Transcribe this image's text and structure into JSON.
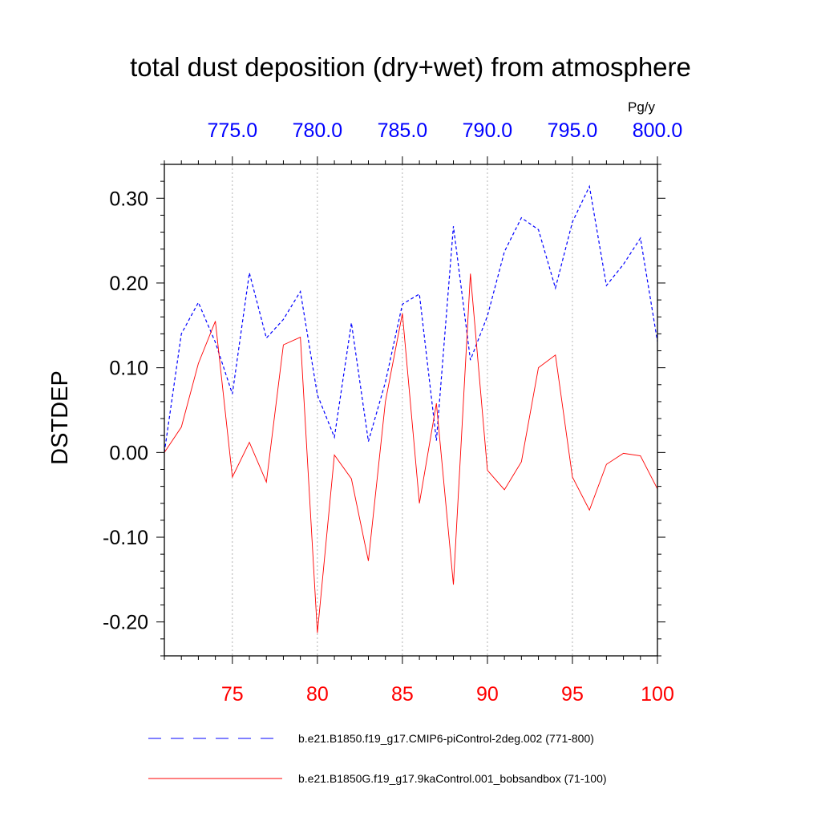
{
  "chart_data": {
    "type": "line",
    "title": "total dust deposition (dry+wet) from atmosphere",
    "ylabel": "DSTDEP",
    "units_label": "Pg/y",
    "ylim": [
      -0.24,
      0.34
    ],
    "y_ticks": [
      {
        "value": 0.3,
        "label": "0.30"
      },
      {
        "value": 0.2,
        "label": "0.20"
      },
      {
        "value": 0.1,
        "label": "0.10"
      },
      {
        "value": 0.0,
        "label": "0.00"
      },
      {
        "value": -0.1,
        "label": "-0.10"
      },
      {
        "value": -0.2,
        "label": "-0.20"
      }
    ],
    "x_bottom": {
      "range": [
        71,
        100
      ],
      "color": "#ff0000",
      "ticks": [
        {
          "value": 75,
          "label": "75"
        },
        {
          "value": 80,
          "label": "80"
        },
        {
          "value": 85,
          "label": "85"
        },
        {
          "value": 90,
          "label": "90"
        },
        {
          "value": 95,
          "label": "95"
        },
        {
          "value": 100,
          "label": "100"
        }
      ]
    },
    "x_top": {
      "range": [
        771,
        800
      ],
      "color": "#0000ff",
      "ticks": [
        {
          "value": 775,
          "label": "775.0"
        },
        {
          "value": 780,
          "label": "780.0"
        },
        {
          "value": 785,
          "label": "785.0"
        },
        {
          "value": 790,
          "label": "790.0"
        },
        {
          "value": 795,
          "label": "795.0"
        },
        {
          "value": 800,
          "label": "800.0"
        }
      ]
    },
    "grid": "vertical dotted at major ticks",
    "series": [
      {
        "name": "b.e21.B1850.f19_g17.CMIP6-piControl-2deg.002 (771-800)",
        "axis": "top",
        "color": "#0000ff",
        "dash": "dashed",
        "x": [
          771,
          772,
          773,
          774,
          775,
          776,
          777,
          778,
          779,
          780,
          781,
          782,
          783,
          784,
          785,
          786,
          787,
          788,
          789,
          790,
          791,
          792,
          793,
          794,
          795,
          796,
          797,
          798,
          799,
          800
        ],
        "values": [
          0.0,
          0.14,
          0.177,
          0.13,
          0.069,
          0.212,
          0.135,
          0.157,
          0.19,
          0.068,
          0.018,
          0.153,
          0.013,
          0.083,
          0.175,
          0.187,
          0.014,
          0.267,
          0.109,
          0.161,
          0.237,
          0.277,
          0.263,
          0.194,
          0.272,
          0.314,
          0.197,
          0.222,
          0.253,
          0.131
        ]
      },
      {
        "name": "b.e21.B1850G.f19_g17.9kaControl.001_bobsandbox (71-100)",
        "axis": "bottom",
        "color": "#ff0000",
        "dash": "solid",
        "x": [
          71,
          72,
          73,
          74,
          75,
          76,
          77,
          78,
          79,
          80,
          81,
          82,
          83,
          84,
          85,
          86,
          87,
          88,
          89,
          90,
          91,
          92,
          93,
          94,
          95,
          96,
          97,
          98,
          99,
          100
        ],
        "values": [
          0.0,
          0.03,
          0.105,
          0.155,
          -0.029,
          0.012,
          -0.035,
          0.127,
          0.136,
          -0.213,
          -0.003,
          -0.031,
          -0.128,
          0.06,
          0.164,
          -0.06,
          0.058,
          -0.156,
          0.211,
          -0.021,
          -0.044,
          -0.011,
          0.1,
          0.115,
          -0.029,
          -0.068,
          -0.014,
          -0.001,
          -0.004,
          -0.043
        ]
      }
    ]
  }
}
